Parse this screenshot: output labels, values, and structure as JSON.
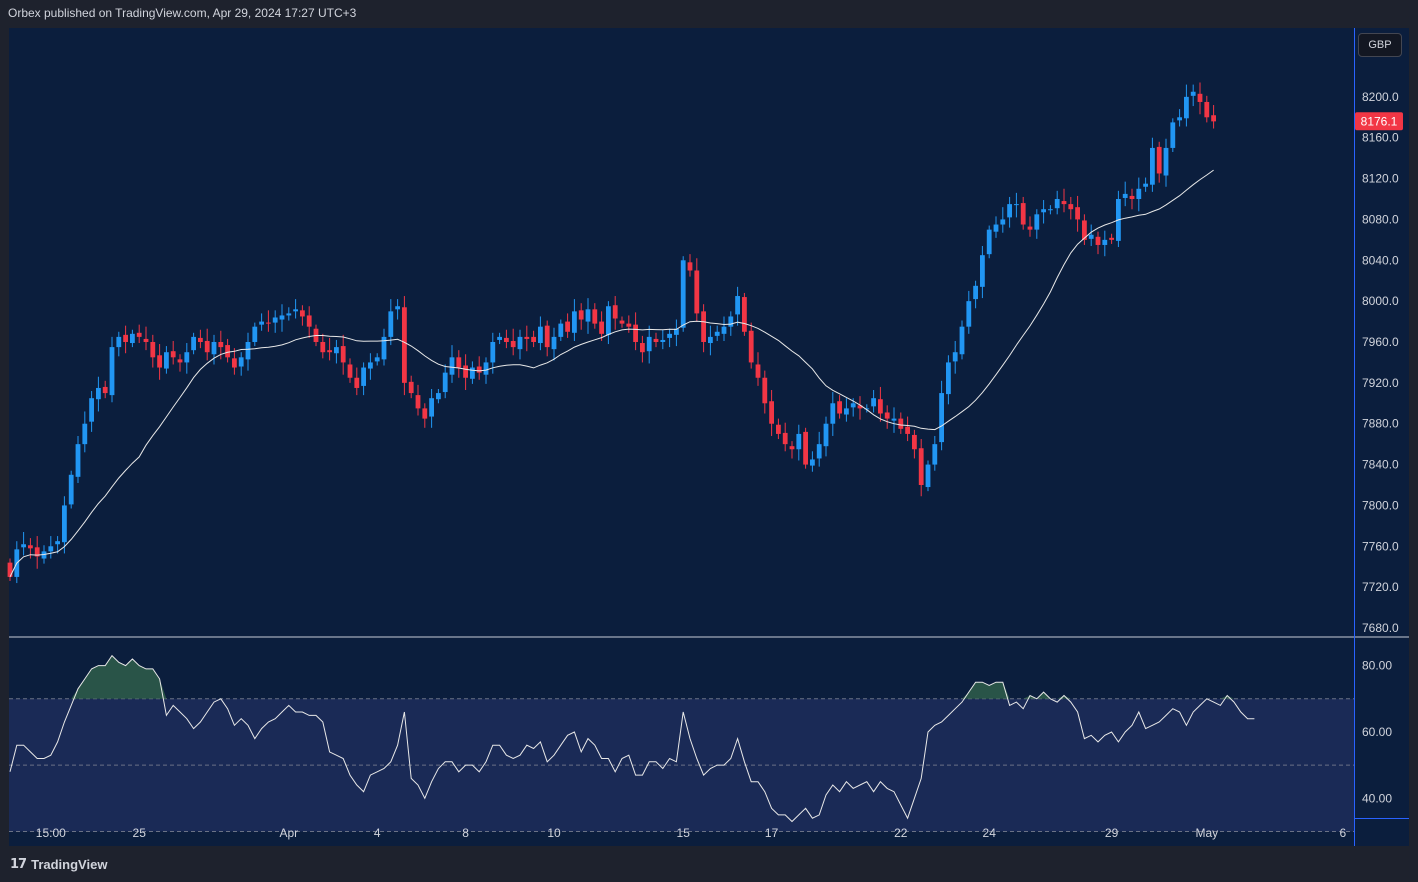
{
  "header": {
    "publisher_text": "Orbex published on TradingView.com, Apr 29, 2024 17:27 UTC+3"
  },
  "currency_button": {
    "label": "GBP"
  },
  "price_tag": {
    "label": "8176.1",
    "value": 8176.1,
    "color": "#f23645"
  },
  "footer": {
    "brand": "TradingView",
    "logo_glyph": "𝟭𝟳"
  },
  "colors": {
    "background": "#0b1e3d",
    "up": "#2196f3",
    "down": "#f23645",
    "ma": "#e8e8e8",
    "rsi_line": "#e8e8e8",
    "rsi_band": "#1a2a56",
    "grid_text": "#d1d4dc"
  },
  "chart_data": [
    {
      "type": "candlestick",
      "title": "",
      "ylim": [
        7680,
        8240
      ],
      "y_ticks": [
        7680.0,
        7720.0,
        7760.0,
        7800.0,
        7840.0,
        7880.0,
        7920.0,
        7960.0,
        8000.0,
        8040.0,
        8080.0,
        8120.0,
        8160.0,
        8200.0
      ],
      "y_tick_labels": [
        "7680.0",
        "7720.0",
        "7760.0",
        "7800.0",
        "7840.0",
        "7880.0",
        "7920.0",
        "7960.0",
        "8000.0",
        "8040.0",
        "8080.0",
        "8120.0",
        "8160.0",
        "8200.0"
      ],
      "x_tick_labels": [
        "15:00",
        "25",
        "Apr",
        "4",
        "8",
        "10",
        "15",
        "17",
        "22",
        "24",
        "29",
        "May",
        "6"
      ],
      "x_tick_index": [
        6,
        19,
        41,
        54,
        67,
        80,
        99,
        112,
        131,
        144,
        162,
        176,
        196
      ],
      "close": [
        7730,
        7757,
        7762,
        7758,
        7750,
        7755,
        7760,
        7765,
        7800,
        7830,
        7860,
        7880,
        7905,
        7915,
        7910,
        7955,
        7965,
        7960,
        7968,
        7965,
        7960,
        7945,
        7935,
        7950,
        7945,
        7940,
        7950,
        7965,
        7960,
        7950,
        7960,
        7955,
        7945,
        7935,
        7945,
        7960,
        7975,
        7980,
        7978,
        7984,
        7986,
        7988,
        7992,
        7985,
        7975,
        7960,
        7950,
        7950,
        7955,
        7940,
        7925,
        7915,
        7935,
        7940,
        7945,
        7965,
        7990,
        7995,
        7920,
        7910,
        7895,
        7885,
        7905,
        7910,
        7930,
        7945,
        7935,
        7925,
        7935,
        7930,
        7940,
        7960,
        7965,
        7960,
        7955,
        7965,
        7963,
        7960,
        7975,
        7955,
        7965,
        7978,
        7970,
        7990,
        7982,
        7992,
        7978,
        7968,
        7995,
        7983,
        7978,
        7975,
        7960,
        7950,
        7965,
        7960,
        7962,
        7968,
        7973,
        8040,
        8030,
        7988,
        7960,
        7965,
        7970,
        7975,
        7985,
        8005,
        7970,
        7940,
        7925,
        7900,
        7880,
        7870,
        7860,
        7855,
        7870,
        7840,
        7845,
        7860,
        7880,
        7900,
        7890,
        7895,
        7900,
        7895,
        7895,
        7905,
        7890,
        7885,
        7885,
        7875,
        7870,
        7855,
        7820,
        7840,
        7860,
        7910,
        7940,
        7950,
        7975,
        8000,
        8015,
        8045,
        8070,
        8075,
        8080,
        8095,
        8095,
        8075,
        8070,
        8085,
        8090,
        8090,
        8100,
        8095,
        8090,
        8080,
        8060,
        8065,
        8055,
        8060,
        8060,
        8100,
        8105,
        8100,
        8110,
        8115,
        8150,
        8125,
        8150,
        8175,
        8180,
        8200,
        8205,
        8195,
        8180,
        8176
      ]
    },
    {
      "type": "line",
      "title": "",
      "ylim": [
        30,
        85
      ],
      "y_ticks": [
        40.0,
        60.0,
        80.0
      ],
      "y_tick_labels": [
        "40.00",
        "60.00",
        "80.00"
      ],
      "levels": [
        70,
        50,
        30
      ],
      "values": [
        48,
        56,
        56,
        54,
        52,
        52,
        53,
        57,
        63,
        68,
        73,
        76,
        79,
        80,
        80,
        83,
        81,
        80,
        82,
        80,
        79,
        79,
        76,
        65,
        68,
        66,
        64,
        61,
        63,
        66,
        69,
        70,
        67,
        62,
        64,
        62,
        58,
        61,
        63,
        64,
        66,
        68,
        66,
        66,
        65,
        65,
        63,
        54,
        53,
        52,
        47,
        44,
        42,
        47,
        48,
        49,
        51,
        56,
        66,
        46,
        44,
        40,
        45,
        49,
        51,
        51,
        48,
        50,
        50,
        48,
        51,
        56,
        56,
        53,
        52,
        53,
        56,
        55,
        57,
        51,
        53,
        56,
        59,
        60,
        54,
        58,
        56,
        52,
        52,
        48,
        52,
        53,
        47,
        47,
        51,
        51,
        49,
        52,
        51,
        66,
        58,
        52,
        47,
        49,
        50,
        50,
        52,
        58,
        51,
        45,
        45,
        42,
        37,
        35,
        35,
        33,
        35,
        37,
        34,
        35,
        41,
        44,
        42,
        45,
        43,
        44,
        45,
        42,
        45,
        43,
        42,
        38,
        34,
        40,
        46,
        60,
        62,
        63,
        65,
        67,
        69,
        72,
        75,
        75,
        74,
        75,
        75,
        68,
        69,
        67,
        71,
        70,
        72,
        70,
        69,
        71,
        69,
        66,
        58,
        59,
        57,
        59,
        60,
        57,
        60,
        62,
        66,
        61,
        62,
        63,
        65,
        67,
        66,
        62,
        66,
        68,
        70,
        69,
        68,
        71,
        69,
        66,
        64,
        64
      ]
    }
  ]
}
